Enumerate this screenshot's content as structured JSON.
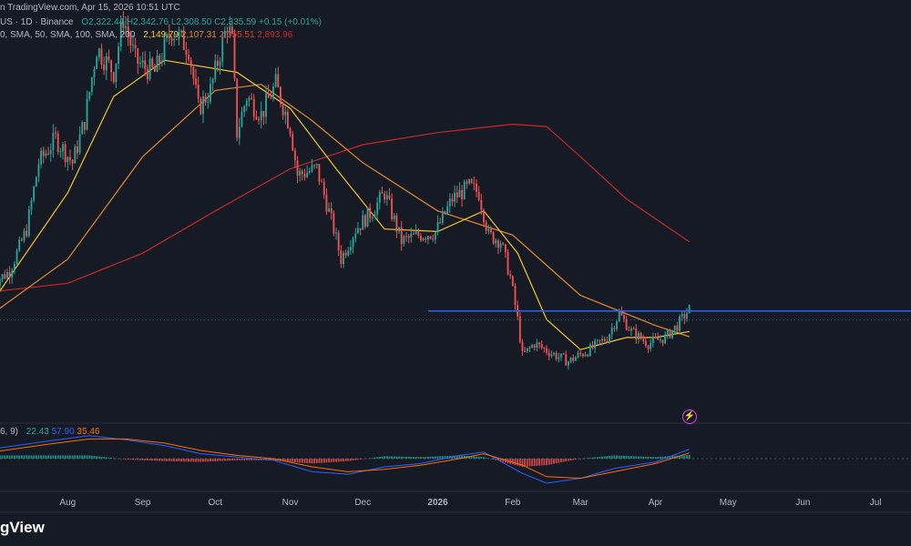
{
  "header": {
    "line1": {
      "published": "n TradingView.com, Apr 15, 2026 10:51 UTC",
      "symbol": "US · 1D · Binance",
      "open": "O2,322.44",
      "high": "H2,342.76",
      "low": "L2,308.50",
      "close": "C2,335.59",
      "change": "+0.15 (+0.01%)"
    },
    "line2": {
      "ma_settings": "0, SMA, 50, SMA, 100, SMA, 200",
      "ma20": "2,149.79",
      "ma50": "2,107.31",
      "ma100": "2,355.51",
      "ma200": "2,893.96"
    }
  },
  "macd_legend": {
    "settings": "6, 9)",
    "histogram": "22.43",
    "macd": "57.90",
    "signal": "35.46"
  },
  "brand": "gView",
  "colors": {
    "background": "#161a25",
    "up": "#26a69a",
    "down": "#ef5350",
    "ma20": "#f4c430",
    "ma50": "#e08a2a",
    "ma200": "#c62828",
    "level": "#2962ff",
    "macd": "#2962ff",
    "signal": "#ff6d00",
    "text": "#b2b5be"
  },
  "icons": [
    "lightning-icon"
  ],
  "chart_data": [
    {
      "type": "candlestick",
      "title": "",
      "x_axis": {
        "type": "date",
        "range": [
          "2025-07-01",
          "2026-07-10"
        ],
        "tick_labels": [
          "Aug",
          "Sep",
          "Oct",
          "Nov",
          "Dec",
          "2026",
          "Feb",
          "Mar",
          "Apr",
          "May",
          "Jun",
          "Jul"
        ]
      },
      "y_axis": {
        "range": [
          1390,
          4900
        ],
        "visible_labels": "none",
        "scale": "linear"
      },
      "grid": "off",
      "price_path": [
        [
          "2025-07-01",
          2550
        ],
        [
          "2025-07-08",
          2650
        ],
        [
          "2025-07-15",
          3000
        ],
        [
          "2025-07-20",
          3550
        ],
        [
          "2025-07-27",
          3750
        ],
        [
          "2025-08-03",
          3550
        ],
        [
          "2025-08-08",
          3900
        ],
        [
          "2025-08-13",
          4500
        ],
        [
          "2025-08-20",
          4300
        ],
        [
          "2025-08-24",
          4750
        ],
        [
          "2025-08-29",
          4400
        ],
        [
          "2025-09-01",
          4350
        ],
        [
          "2025-09-06",
          4300
        ],
        [
          "2025-09-13",
          4650
        ],
        [
          "2025-09-20",
          4500
        ],
        [
          "2025-09-24",
          4000
        ],
        [
          "2025-09-29",
          4150
        ],
        [
          "2025-10-06",
          4700
        ],
        [
          "2025-10-08",
          4550
        ],
        [
          "2025-10-10",
          3800
        ],
        [
          "2025-10-14",
          4100
        ],
        [
          "2025-10-20",
          3950
        ],
        [
          "2025-10-26",
          4200
        ],
        [
          "2025-11-01",
          3850
        ],
        [
          "2025-11-04",
          3450
        ],
        [
          "2025-11-12",
          3500
        ],
        [
          "2025-11-19",
          3000
        ],
        [
          "2025-11-22",
          2750
        ],
        [
          "2025-11-28",
          3000
        ],
        [
          "2025-12-05",
          3150
        ],
        [
          "2025-12-10",
          3300
        ],
        [
          "2025-12-17",
          2900
        ],
        [
          "2025-12-24",
          2950
        ],
        [
          "2025-12-31",
          2970
        ],
        [
          "2026-01-07",
          3250
        ],
        [
          "2026-01-14",
          3350
        ],
        [
          "2026-01-18",
          3300
        ],
        [
          "2026-01-22",
          2950
        ],
        [
          "2026-01-27",
          2900
        ],
        [
          "2026-01-31",
          2600
        ],
        [
          "2026-02-03",
          2250
        ],
        [
          "2026-02-05",
          1950
        ],
        [
          "2026-02-10",
          2050
        ],
        [
          "2026-02-17",
          1970
        ],
        [
          "2026-02-24",
          1900
        ],
        [
          "2026-02-28",
          1950
        ],
        [
          "2026-03-05",
          2000
        ],
        [
          "2026-03-12",
          2100
        ],
        [
          "2026-03-17",
          2300
        ],
        [
          "2026-03-22",
          2150
        ],
        [
          "2026-03-29",
          2050
        ],
        [
          "2026-04-05",
          2100
        ],
        [
          "2026-04-10",
          2200
        ],
        [
          "2026-04-15",
          2336
        ]
      ],
      "moving_averages": [
        {
          "name": "SMA 20",
          "color": "#f4c430",
          "points": [
            [
              "2025-07-01",
              2400
            ],
            [
              "2025-08-01",
              3300
            ],
            [
              "2025-08-20",
              4100
            ],
            [
              "2025-09-10",
              4400
            ],
            [
              "2025-10-10",
              4300
            ],
            [
              "2025-11-01",
              4000
            ],
            [
              "2025-11-20",
              3500
            ],
            [
              "2025-12-10",
              3000
            ],
            [
              "2026-01-01",
              2980
            ],
            [
              "2026-01-20",
              3150
            ],
            [
              "2026-02-03",
              2800
            ],
            [
              "2026-02-15",
              2250
            ],
            [
              "2026-03-01",
              2000
            ],
            [
              "2026-03-20",
              2100
            ],
            [
              "2026-04-01",
              2100
            ],
            [
              "2026-04-15",
              2150
            ]
          ]
        },
        {
          "name": "SMA 50",
          "color": "#e08a2a",
          "points": [
            [
              "2025-07-01",
              2300
            ],
            [
              "2025-08-01",
              2750
            ],
            [
              "2025-09-01",
              3600
            ],
            [
              "2025-10-01",
              4150
            ],
            [
              "2025-10-20",
              4200
            ],
            [
              "2025-11-10",
              3900
            ],
            [
              "2025-12-01",
              3550
            ],
            [
              "2026-01-01",
              3150
            ],
            [
              "2026-02-01",
              2950
            ],
            [
              "2026-02-15",
              2700
            ],
            [
              "2026-03-01",
              2450
            ],
            [
              "2026-04-01",
              2200
            ],
            [
              "2026-04-15",
              2107
            ]
          ]
        },
        {
          "name": "SMA 200",
          "color": "#c62828",
          "points": [
            [
              "2025-07-01",
              2480
            ],
            [
              "2025-08-01",
              2550
            ],
            [
              "2025-09-01",
              2800
            ],
            [
              "2025-10-01",
              3150
            ],
            [
              "2025-11-01",
              3500
            ],
            [
              "2025-12-01",
              3700
            ],
            [
              "2026-01-01",
              3800
            ],
            [
              "2026-02-01",
              3870
            ],
            [
              "2026-02-15",
              3850
            ],
            [
              "2026-03-01",
              3600
            ],
            [
              "2026-03-20",
              3250
            ],
            [
              "2026-04-15",
              2894
            ]
          ]
        }
      ],
      "horizontal_line": {
        "value": 2320,
        "from": "2025-12-28",
        "color": "#2962ff"
      },
      "last_price_line": {
        "value": 2336,
        "style": "dotted"
      }
    },
    {
      "type": "macd",
      "title": "",
      "x_axis": {
        "type": "date",
        "range": [
          "2025-07-01",
          "2026-07-10"
        ]
      },
      "y_range": [
        -200,
        200
      ],
      "zero_line": "dotted",
      "macd_line": [
        [
          "2025-07-01",
          60
        ],
        [
          "2025-07-25",
          110
        ],
        [
          "2025-08-10",
          140
        ],
        [
          "2025-08-25",
          115
        ],
        [
          "2025-09-10",
          80
        ],
        [
          "2025-09-25",
          30
        ],
        [
          "2025-10-10",
          10
        ],
        [
          "2025-10-25",
          -10
        ],
        [
          "2025-11-10",
          -80
        ],
        [
          "2025-11-25",
          -95
        ],
        [
          "2025-12-10",
          -50
        ],
        [
          "2025-12-25",
          -30
        ],
        [
          "2026-01-10",
          20
        ],
        [
          "2026-01-20",
          40
        ],
        [
          "2026-02-05",
          -90
        ],
        [
          "2026-02-15",
          -150
        ],
        [
          "2026-03-01",
          -120
        ],
        [
          "2026-03-15",
          -60
        ],
        [
          "2026-04-01",
          -20
        ],
        [
          "2026-04-15",
          58
        ]
      ],
      "signal_line": [
        [
          "2025-07-01",
          40
        ],
        [
          "2025-07-25",
          90
        ],
        [
          "2025-08-10",
          120
        ],
        [
          "2025-08-25",
          120
        ],
        [
          "2025-09-10",
          95
        ],
        [
          "2025-09-25",
          50
        ],
        [
          "2025-10-10",
          20
        ],
        [
          "2025-10-25",
          0
        ],
        [
          "2025-11-10",
          -50
        ],
        [
          "2025-11-25",
          -80
        ],
        [
          "2025-12-10",
          -65
        ],
        [
          "2025-12-25",
          -40
        ],
        [
          "2026-01-10",
          0
        ],
        [
          "2026-01-20",
          30
        ],
        [
          "2026-02-05",
          -40
        ],
        [
          "2026-02-15",
          -110
        ],
        [
          "2026-03-01",
          -120
        ],
        [
          "2026-03-15",
          -80
        ],
        [
          "2026-04-01",
          -30
        ],
        [
          "2026-04-15",
          35
        ]
      ]
    }
  ]
}
